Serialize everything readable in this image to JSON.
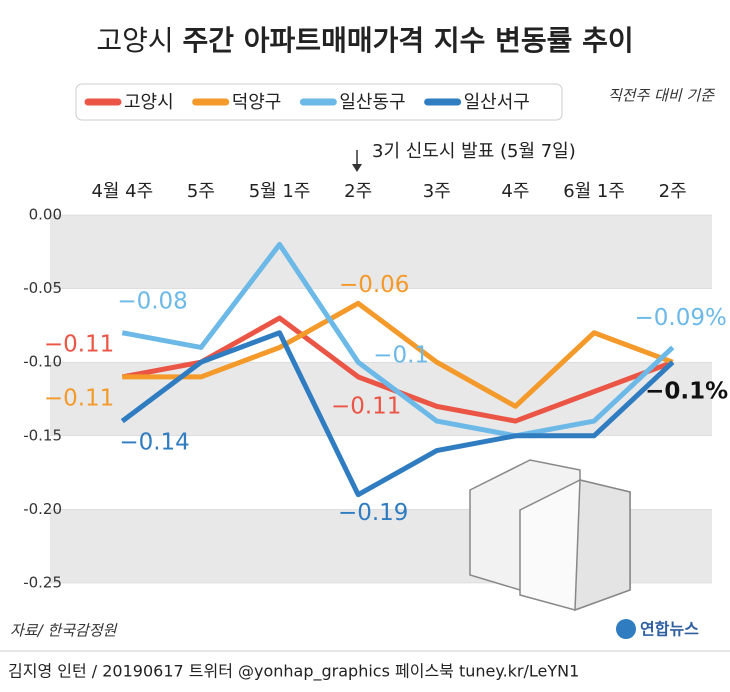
{
  "chart_data": {
    "type": "line",
    "title": "고양시 주간 아파트매매가격 지수 변동률 추이",
    "note": "직전주 대비 기준",
    "annotation": "3기 신도시 발표 (5월 7일)",
    "source": "자료/ 한국감정원",
    "logo": "연합뉴스",
    "footer": "김지영 인턴 / 20190617 트위터 @yonhap_graphics  페이스북 tuney.kr/LeYN1",
    "categories": [
      "4월 4주",
      "5주",
      "5월 1주",
      "2주",
      "3주",
      "4주",
      "6월 1주",
      "2주"
    ],
    "series": [
      {
        "name": "고양시",
        "color": "#ea5545",
        "values": [
          -0.11,
          -0.1,
          -0.07,
          -0.11,
          -0.13,
          -0.14,
          -0.12,
          -0.1
        ],
        "value_labels": [
          "−0.11",
          null,
          null,
          "−0.11",
          null,
          null,
          null,
          "−0.1%"
        ]
      },
      {
        "name": "덕양구",
        "color": "#f39a2b",
        "values": [
          -0.11,
          -0.11,
          -0.09,
          -0.06,
          -0.1,
          -0.13,
          -0.08,
          -0.1
        ],
        "value_labels": [
          "−0.11",
          null,
          null,
          "−0.06",
          null,
          null,
          null,
          null
        ]
      },
      {
        "name": "일산동구",
        "color": "#6cb9e8",
        "values": [
          -0.08,
          -0.09,
          -0.02,
          -0.1,
          -0.14,
          -0.15,
          -0.14,
          -0.09
        ],
        "value_labels": [
          "−0.08",
          null,
          null,
          "−0.1",
          null,
          null,
          null,
          "−0.09%"
        ]
      },
      {
        "name": "일산서구",
        "color": "#2f7cc0",
        "values": [
          -0.14,
          -0.1,
          -0.08,
          -0.19,
          -0.16,
          -0.15,
          -0.15,
          -0.1
        ],
        "value_labels": [
          "−0.14",
          null,
          null,
          "−0.19",
          null,
          null,
          null,
          null
        ]
      }
    ],
    "ylim": [
      -0.25,
      0
    ],
    "yticks": [
      {
        "value": 0,
        "label": "0.00"
      },
      -0.05,
      {
        "value": -0.1,
        "label": "-0.10"
      },
      -0.15,
      {
        "value": -0.2,
        "label": "-0.20"
      },
      -0.25
    ]
  }
}
